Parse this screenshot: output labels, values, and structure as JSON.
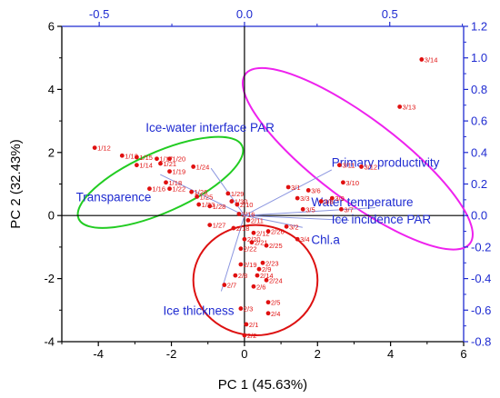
{
  "chart_data": {
    "type": "scatter",
    "xlabel": "PC 1 (45.63%)",
    "ylabel": "PC 2 (32.43%)",
    "xlim": [
      -5,
      6
    ],
    "ylim": [
      -4,
      6
    ],
    "xticks": [
      "-4",
      "-2",
      "0",
      "2",
      "4",
      "6"
    ],
    "yticks": [
      "-4",
      "-2",
      "0",
      "2",
      "4",
      "6"
    ],
    "top_xlim": [
      -0.6287,
      0.7543
    ],
    "top_xticks": [
      "-0.5",
      "0.0",
      "0.5"
    ],
    "right_ylim": [
      -0.8,
      1.2
    ],
    "right_yticks": [
      "-0.8",
      "-0.6",
      "-0.4",
      "-0.2",
      "0.0",
      "0.2",
      "0.4",
      "0.6",
      "0.8",
      "1.0",
      "1.2"
    ],
    "grid": false,
    "colors": {
      "points": "#e01010",
      "loadings": "#8b96e0",
      "loading_labels": "#1f2bd1",
      "group_green": "#22cc22",
      "group_magenta": "#ee22ee",
      "group_red": "#dd1111"
    },
    "loadings": [
      {
        "name": "Ice-water interface PAR",
        "x": -0.115,
        "y": 0.3,
        "label_x": -0.34,
        "label_y": 0.53
      },
      {
        "name": "Transparence",
        "x": -0.29,
        "y": 0.26,
        "label_x": -0.58,
        "label_y": 0.09
      },
      {
        "name": "Primary productivity",
        "x": 0.3,
        "y": 0.29,
        "label_x": 0.3,
        "label_y": 0.31
      },
      {
        "name": "Water temperature",
        "x": 0.45,
        "y": 0.05,
        "label_x": 0.23,
        "label_y": 0.06
      },
      {
        "name": "Ice incidence PAR",
        "x": 0.36,
        "y": -0.03,
        "label_x": 0.3,
        "label_y": -0.05
      },
      {
        "name": "Chl.a",
        "x": 0.2,
        "y": -0.075,
        "label_x": 0.23,
        "label_y": -0.18
      },
      {
        "name": "Ice thickness",
        "x": -0.08,
        "y": -0.48,
        "label_x": -0.28,
        "label_y": -0.63
      }
    ],
    "points": [
      {
        "label": "1/12",
        "x": -4.1,
        "y": 2.15
      },
      {
        "label": "1/13",
        "x": -3.35,
        "y": 1.9
      },
      {
        "label": "1/15",
        "x": -2.95,
        "y": 1.85
      },
      {
        "label": "1/14",
        "x": -2.95,
        "y": 1.6
      },
      {
        "label": "1/17",
        "x": -2.4,
        "y": 1.8
      },
      {
        "label": "1/20",
        "x": -2.05,
        "y": 1.8
      },
      {
        "label": "1/21",
        "x": -2.3,
        "y": 1.65
      },
      {
        "label": "1/19",
        "x": -2.05,
        "y": 1.4
      },
      {
        "label": "1/18",
        "x": -2.15,
        "y": 1.05
      },
      {
        "label": "1/16",
        "x": -2.6,
        "y": 0.85
      },
      {
        "label": "1/22",
        "x": -2.05,
        "y": 0.85
      },
      {
        "label": "1/24",
        "x": -1.4,
        "y": 1.55
      },
      {
        "label": "1/26",
        "x": -1.45,
        "y": 0.75
      },
      {
        "label": "1/25",
        "x": -1.3,
        "y": 0.6
      },
      {
        "label": "1/23",
        "x": -1.25,
        "y": 0.35
      },
      {
        "label": "1/28",
        "x": -0.95,
        "y": 0.3
      },
      {
        "label": "1/29",
        "x": -0.45,
        "y": 0.7
      },
      {
        "label": "1/30",
        "x": -0.35,
        "y": 0.45
      },
      {
        "label": "2/10",
        "x": -0.2,
        "y": 0.35
      },
      {
        "label": "2/16",
        "x": -0.15,
        "y": 0.05
      },
      {
        "label": "1/27",
        "x": -0.95,
        "y": -0.3
      },
      {
        "label": "2/18",
        "x": -0.3,
        "y": -0.4
      },
      {
        "label": "2/11",
        "x": 0.1,
        "y": -0.15
      },
      {
        "label": "2/12",
        "x": 0.25,
        "y": -0.55
      },
      {
        "label": "2/20",
        "x": 0.0,
        "y": -0.75
      },
      {
        "label": "2/21",
        "x": 0.2,
        "y": -0.85
      },
      {
        "label": "2/22",
        "x": -0.1,
        "y": -1.05
      },
      {
        "label": "2/26",
        "x": 0.65,
        "y": -0.5
      },
      {
        "label": "2/25",
        "x": 0.6,
        "y": -0.95
      },
      {
        "label": "2/23",
        "x": 0.5,
        "y": -1.5
      },
      {
        "label": "2/19",
        "x": -0.1,
        "y": -1.55
      },
      {
        "label": "2/9",
        "x": 0.4,
        "y": -1.7
      },
      {
        "label": "2/14",
        "x": 0.35,
        "y": -1.9
      },
      {
        "label": "2/8",
        "x": -0.25,
        "y": -1.9
      },
      {
        "label": "2/24",
        "x": 0.6,
        "y": -2.05
      },
      {
        "label": "2/6",
        "x": 0.25,
        "y": -2.25
      },
      {
        "label": "2/7",
        "x": -0.55,
        "y": -2.2
      },
      {
        "label": "2/3",
        "x": -0.1,
        "y": -2.95
      },
      {
        "label": "2/5",
        "x": 0.65,
        "y": -2.75
      },
      {
        "label": "2/4",
        "x": 0.65,
        "y": -3.1
      },
      {
        "label": "2/1",
        "x": 0.05,
        "y": -3.45
      },
      {
        "label": "2/2",
        "x": 0.0,
        "y": -3.8
      },
      {
        "label": "3/1",
        "x": 1.2,
        "y": 0.9
      },
      {
        "label": "3/6",
        "x": 1.75,
        "y": 0.8
      },
      {
        "label": "3/3",
        "x": 1.45,
        "y": 0.55
      },
      {
        "label": "3/8",
        "x": 2.1,
        "y": 0.45
      },
      {
        "label": "3/9",
        "x": 2.4,
        "y": 0.55
      },
      {
        "label": "3/5",
        "x": 1.6,
        "y": 0.2
      },
      {
        "label": "3/7",
        "x": 2.65,
        "y": 0.2
      },
      {
        "label": "3/2",
        "x": 1.15,
        "y": -0.35
      },
      {
        "label": "3/4",
        "x": 1.45,
        "y": -0.75
      },
      {
        "label": "3/10",
        "x": 2.7,
        "y": 1.05
      },
      {
        "label": "3/11",
        "x": 2.6,
        "y": 1.6
      },
      {
        "label": "3/12",
        "x": 3.2,
        "y": 1.55
      },
      {
        "label": "3/13",
        "x": 4.25,
        "y": 3.45
      },
      {
        "label": "3/14",
        "x": 4.85,
        "y": 4.95
      }
    ],
    "groups": [
      {
        "color": "green",
        "cx": -2.3,
        "cy": 1.05,
        "rx": 2.45,
        "ry": 0.95,
        "angle": -24
      },
      {
        "color": "magenta",
        "cx": 3.1,
        "cy": 1.8,
        "rx": 3.85,
        "ry": 1.3,
        "angle": 37
      },
      {
        "color": "red",
        "cx": 0.3,
        "cy": -2.05,
        "rx": 1.7,
        "ry": 1.75,
        "angle": 0
      }
    ]
  }
}
